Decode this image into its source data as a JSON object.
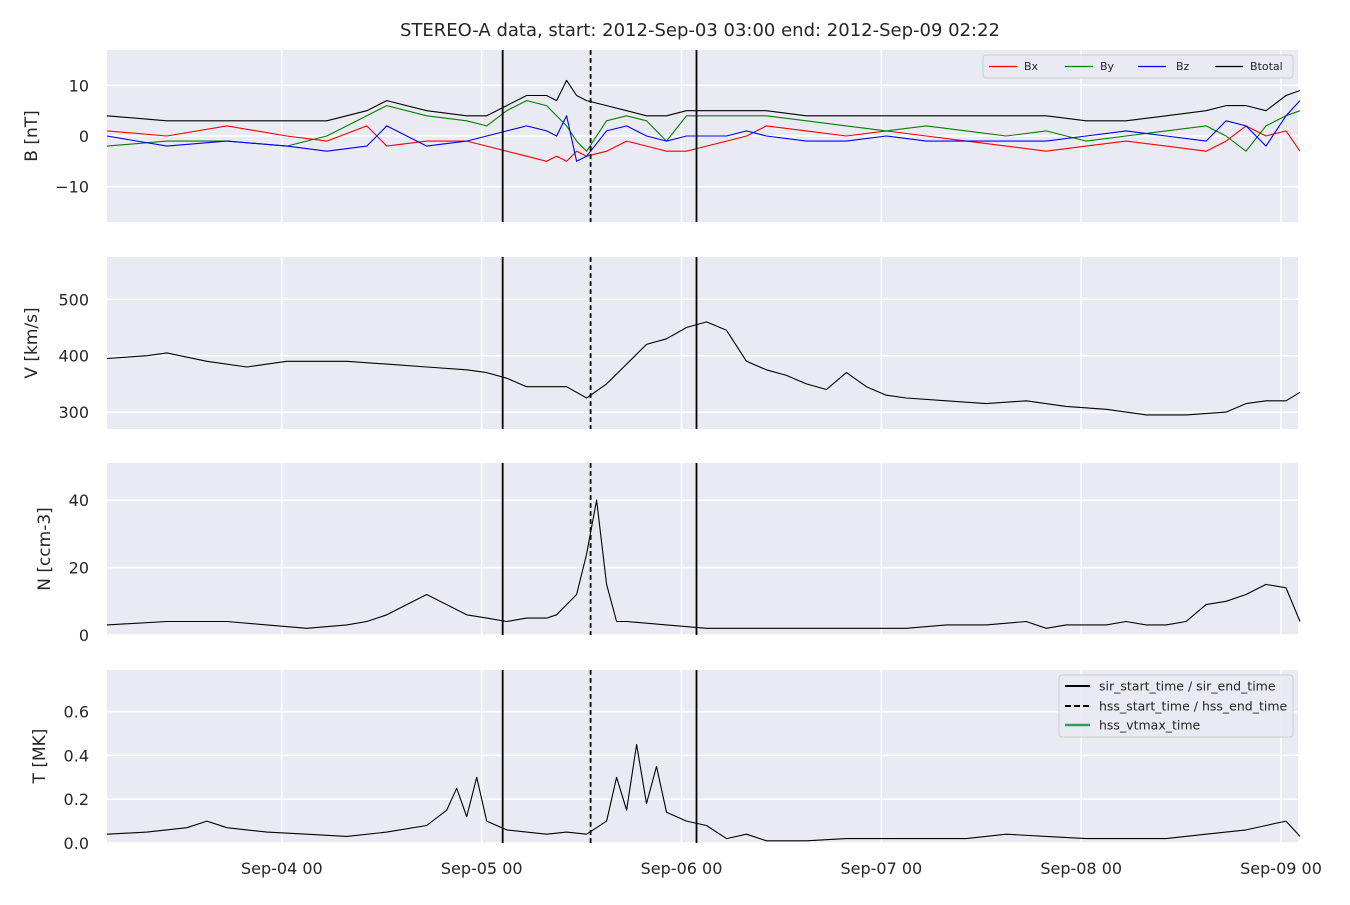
{
  "title": "STEREO-A data, start: 2012-Sep-03 03:00  end: 2012-Sep-09 02:22",
  "colors": {
    "bx": "#ff0000",
    "by": "#008000",
    "bz": "#0000ff",
    "btotal": "#000000",
    "vtmax": "#2ca05a",
    "panel_bg": "#eaeaf2",
    "grid": "#ffffff"
  },
  "chart_data": [
    {
      "type": "line",
      "panel": "B",
      "ylabel": "B [nT]",
      "ylim": [
        -17,
        17
      ],
      "yticks": [
        -10,
        0,
        10
      ],
      "ytick_labels": [
        "−10",
        "0",
        "10"
      ],
      "legend": {
        "position": "top-right",
        "entries": [
          "Bx",
          "By",
          "Bz",
          "Btotal"
        ]
      },
      "series": [
        {
          "name": "Bx",
          "t": [
            0.0,
            0.3,
            0.6,
            0.9,
            1.1,
            1.3,
            1.4,
            1.6,
            1.8,
            1.9,
            2.0,
            2.1,
            2.2,
            2.25,
            2.3,
            2.35,
            2.4,
            2.5,
            2.6,
            2.7,
            2.8,
            2.9,
            3.0,
            3.1,
            3.2,
            3.3,
            3.5,
            3.7,
            3.9,
            4.1,
            4.3,
            4.5,
            4.7,
            4.9,
            5.1,
            5.3,
            5.5,
            5.6,
            5.7,
            5.8,
            5.9,
            5.97
          ],
          "y": [
            1,
            0,
            2,
            0,
            -1,
            2,
            -2,
            -1,
            -1,
            -2,
            -3,
            -4,
            -5,
            -4,
            -5,
            -3,
            -4,
            -3,
            -1,
            -2,
            -3,
            -3,
            -2,
            -1,
            0,
            2,
            1,
            0,
            1,
            0,
            -1,
            -2,
            -3,
            -2,
            -1,
            -2,
            -3,
            -1,
            2,
            0,
            1,
            -3
          ]
        },
        {
          "name": "By",
          "t": [
            0.0,
            0.3,
            0.6,
            0.9,
            1.1,
            1.3,
            1.4,
            1.6,
            1.8,
            1.9,
            2.0,
            2.1,
            2.2,
            2.25,
            2.3,
            2.35,
            2.4,
            2.5,
            2.6,
            2.7,
            2.8,
            2.9,
            3.0,
            3.1,
            3.2,
            3.3,
            3.5,
            3.7,
            3.9,
            4.1,
            4.3,
            4.5,
            4.7,
            4.9,
            5.1,
            5.3,
            5.5,
            5.6,
            5.7,
            5.8,
            5.9,
            5.97
          ],
          "y": [
            -2,
            -1,
            -1,
            -2,
            0,
            4,
            6,
            4,
            3,
            2,
            5,
            7,
            6,
            4,
            2,
            -1,
            -3,
            3,
            4,
            3,
            -1,
            4,
            4,
            4,
            4,
            4,
            3,
            2,
            1,
            2,
            1,
            0,
            1,
            -1,
            0,
            1,
            2,
            0,
            -3,
            2,
            4,
            5
          ]
        },
        {
          "name": "Bz",
          "t": [
            0.0,
            0.3,
            0.6,
            0.9,
            1.1,
            1.3,
            1.4,
            1.6,
            1.8,
            1.9,
            2.0,
            2.1,
            2.2,
            2.25,
            2.3,
            2.35,
            2.4,
            2.5,
            2.6,
            2.7,
            2.8,
            2.9,
            3.0,
            3.1,
            3.2,
            3.3,
            3.5,
            3.7,
            3.9,
            4.1,
            4.3,
            4.5,
            4.7,
            4.9,
            5.1,
            5.3,
            5.5,
            5.6,
            5.7,
            5.8,
            5.9,
            5.97
          ],
          "y": [
            0,
            -2,
            -1,
            -2,
            -3,
            -2,
            2,
            -2,
            -1,
            0,
            1,
            2,
            1,
            0,
            4,
            -5,
            -4,
            1,
            2,
            0,
            -1,
            0,
            0,
            0,
            1,
            0,
            -1,
            -1,
            0,
            -1,
            -1,
            -1,
            -1,
            0,
            1,
            0,
            -1,
            3,
            2,
            -2,
            4,
            7
          ]
        },
        {
          "name": "Btotal",
          "t": [
            0.0,
            0.3,
            0.6,
            0.9,
            1.1,
            1.3,
            1.4,
            1.6,
            1.8,
            1.9,
            2.0,
            2.1,
            2.2,
            2.25,
            2.3,
            2.35,
            2.4,
            2.5,
            2.6,
            2.7,
            2.8,
            2.9,
            3.0,
            3.1,
            3.2,
            3.3,
            3.5,
            3.7,
            3.9,
            4.1,
            4.3,
            4.5,
            4.7,
            4.9,
            5.1,
            5.3,
            5.5,
            5.6,
            5.7,
            5.8,
            5.9,
            5.97
          ],
          "y": [
            4,
            3,
            3,
            3,
            3,
            5,
            7,
            5,
            4,
            4,
            6,
            8,
            8,
            7,
            11,
            8,
            7,
            6,
            5,
            4,
            4,
            5,
            5,
            5,
            5,
            5,
            4,
            4,
            4,
            4,
            4,
            4,
            4,
            3,
            3,
            4,
            5,
            6,
            6,
            5,
            8,
            9
          ]
        }
      ]
    },
    {
      "type": "line",
      "panel": "V",
      "ylabel": "V [km/s]",
      "ylim": [
        270,
        575
      ],
      "yticks": [
        300,
        400,
        500
      ],
      "ytick_labels": [
        "300",
        "400",
        "500"
      ],
      "series": [
        {
          "name": "",
          "t": [
            0.0,
            0.2,
            0.3,
            0.5,
            0.7,
            0.9,
            1.2,
            1.4,
            1.6,
            1.8,
            1.9,
            2.0,
            2.1,
            2.2,
            2.3,
            2.4,
            2.5,
            2.6,
            2.7,
            2.8,
            2.9,
            3.0,
            3.1,
            3.2,
            3.3,
            3.4,
            3.5,
            3.6,
            3.7,
            3.8,
            3.9,
            4.0,
            4.2,
            4.4,
            4.6,
            4.8,
            5.0,
            5.2,
            5.4,
            5.6,
            5.7,
            5.8,
            5.9,
            5.97
          ],
          "y": [
            395,
            400,
            405,
            390,
            380,
            390,
            390,
            385,
            380,
            375,
            370,
            360,
            345,
            345,
            345,
            325,
            350,
            385,
            420,
            430,
            450,
            460,
            445,
            390,
            375,
            365,
            350,
            340,
            370,
            345,
            330,
            325,
            320,
            315,
            320,
            310,
            305,
            295,
            295,
            300,
            315,
            320,
            320,
            335
          ]
        }
      ]
    },
    {
      "type": "line",
      "panel": "N",
      "ylabel": "N [ccm-3]",
      "ylim": [
        0,
        51
      ],
      "yticks": [
        0,
        20,
        40
      ],
      "ytick_labels": [
        "0",
        "20",
        "40"
      ],
      "series": [
        {
          "name": "",
          "t": [
            0.0,
            0.3,
            0.6,
            0.8,
            1.0,
            1.2,
            1.3,
            1.4,
            1.5,
            1.6,
            1.8,
            1.9,
            2.0,
            2.1,
            2.2,
            2.25,
            2.35,
            2.4,
            2.45,
            2.5,
            2.55,
            2.6,
            2.8,
            3.0,
            3.2,
            3.4,
            3.6,
            3.8,
            4.0,
            4.2,
            4.4,
            4.6,
            4.7,
            4.8,
            4.9,
            5.0,
            5.1,
            5.2,
            5.3,
            5.4,
            5.5,
            5.6,
            5.7,
            5.8,
            5.9,
            5.97
          ],
          "y": [
            3,
            4,
            4,
            3,
            2,
            3,
            4,
            6,
            9,
            12,
            6,
            5,
            4,
            5,
            5,
            6,
            12,
            24,
            40,
            15,
            4,
            4,
            3,
            2,
            2,
            2,
            2,
            2,
            2,
            3,
            3,
            4,
            2,
            3,
            3,
            3,
            4,
            3,
            3,
            4,
            9,
            10,
            12,
            15,
            14,
            4
          ]
        }
      ]
    },
    {
      "type": "line",
      "panel": "T",
      "ylabel": "T [MK]",
      "ylim": [
        0,
        0.79
      ],
      "yticks": [
        0.0,
        0.2,
        0.4,
        0.6
      ],
      "ytick_labels": [
        "0.0",
        "0.2",
        "0.4",
        "0.6"
      ],
      "legend": {
        "position": "top-right",
        "entries": [
          "sir_start_time / sir_end_time",
          "hss_start_time / hss_end_time",
          "hss_vtmax_time"
        ]
      },
      "series": [
        {
          "name": "",
          "t": [
            0.0,
            0.2,
            0.4,
            0.5,
            0.6,
            0.8,
            1.0,
            1.2,
            1.4,
            1.6,
            1.7,
            1.75,
            1.8,
            1.85,
            1.9,
            2.0,
            2.1,
            2.2,
            2.3,
            2.4,
            2.5,
            2.55,
            2.6,
            2.65,
            2.7,
            2.75,
            2.8,
            2.9,
            3.0,
            3.1,
            3.2,
            3.3,
            3.5,
            3.7,
            3.9,
            4.1,
            4.3,
            4.5,
            4.7,
            4.9,
            5.1,
            5.3,
            5.5,
            5.7,
            5.8,
            5.9,
            5.97
          ],
          "y": [
            0.04,
            0.05,
            0.07,
            0.1,
            0.07,
            0.05,
            0.04,
            0.03,
            0.05,
            0.08,
            0.15,
            0.25,
            0.12,
            0.3,
            0.1,
            0.06,
            0.05,
            0.04,
            0.05,
            0.04,
            0.1,
            0.3,
            0.15,
            0.45,
            0.18,
            0.35,
            0.14,
            0.1,
            0.08,
            0.02,
            0.04,
            0.01,
            0.01,
            0.02,
            0.02,
            0.02,
            0.02,
            0.04,
            0.03,
            0.02,
            0.02,
            0.02,
            0.04,
            0.06,
            0.08,
            0.1,
            0.03
          ]
        }
      ]
    }
  ],
  "x_axis": {
    "tick_labels": [
      "Sep-04 00",
      "Sep-05 00",
      "Sep-06 00",
      "Sep-07 00",
      "Sep-08 00",
      "Sep-09 00"
    ],
    "tick_days_from_start": [
      0.875,
      1.875,
      2.875,
      3.875,
      4.875,
      5.875
    ],
    "span_days": 5.96
  },
  "event_lines": {
    "sir_start": 1.98,
    "hss_start": 2.42,
    "sir_end": 2.95
  }
}
